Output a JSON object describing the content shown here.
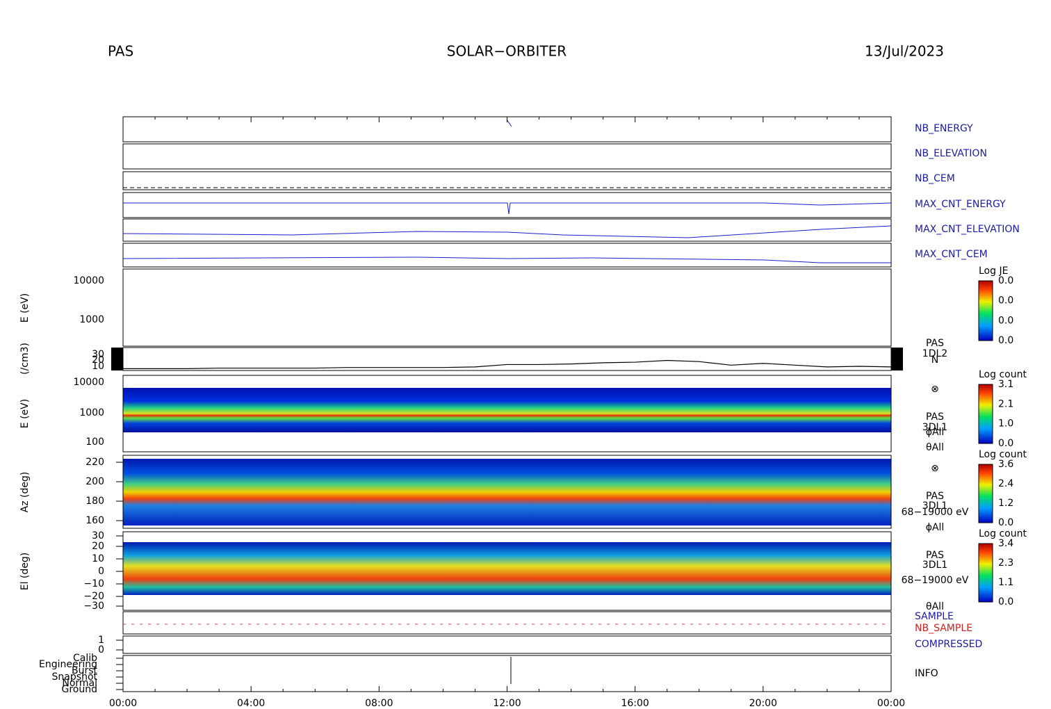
{
  "header": {
    "left": "PAS",
    "center": "SOLAR−ORBITER",
    "right": "13/Jul/2023"
  },
  "x_axis": {
    "ticks": [
      "00:00",
      "04:00",
      "08:00",
      "12:00",
      "16:00",
      "20:00",
      "00:00"
    ]
  },
  "panels": {
    "nb_energy": "NB_ENERGY",
    "nb_elevation": "NB_ELEVATION",
    "nb_cem": "NB_CEM",
    "max_cnt_energy": "MAX_CNT_ENERGY",
    "max_cnt_elevation": "MAX_CNT_ELEVATION",
    "max_cnt_cem": "MAX_CNT_CEM",
    "sample": "SAMPLE",
    "nb_sample": "NB_SAMPLE",
    "compressed": "COMPRESSED",
    "info": "INFO"
  },
  "energy_empty": {
    "ylabel": "E (eV)",
    "yticks": [
      "10000",
      "1000"
    ],
    "cbar_title": "Log JE",
    "cbar_ticks": [
      "0.0",
      "0.0",
      "0.0",
      "0.0"
    ]
  },
  "density": {
    "ylabel": "(/cm3)",
    "yticks": [
      30,
      20,
      10
    ],
    "labels": [
      "PAS",
      "1DL2",
      "N"
    ],
    "hours": [
      0,
      1,
      2,
      3,
      4,
      5,
      6,
      7,
      8,
      9,
      10,
      11,
      12,
      13,
      14,
      15,
      16,
      17,
      18,
      19,
      20,
      21,
      22,
      23,
      24
    ],
    "values": [
      6,
      6,
      6,
      7,
      7,
      7,
      7,
      8,
      8,
      8,
      8,
      9,
      13,
      13,
      14,
      16,
      17,
      20,
      18,
      12,
      15,
      12,
      9,
      10,
      9
    ]
  },
  "energy": {
    "ylabel": "E (eV)",
    "yticks": [
      "10000",
      "1000",
      "100"
    ],
    "labels": [
      "⊗",
      "PAS",
      "3DL1",
      "ϕAll",
      "θAll"
    ],
    "cbar_title": "Log count",
    "cbar_ticks": [
      "3.1",
      "2.1",
      "1.0",
      "0.0"
    ]
  },
  "azimuth": {
    "ylabel": "Az (deg)",
    "yticks": [
      "220",
      "200",
      "180",
      "160"
    ],
    "labels": [
      "⊗",
      "PAS",
      "3DL1",
      "68−19000 eV",
      "ϕAll"
    ],
    "cbar_title": "Log count",
    "cbar_ticks": [
      "3.6",
      "2.4",
      "1.2",
      "0.0"
    ]
  },
  "elevation": {
    "ylabel": "El (deg)",
    "yticks": [
      "30",
      "20",
      "10",
      "0",
      "−10",
      "−20",
      "−30"
    ],
    "labels": [
      "PAS",
      "3DL1",
      "68−19000 eV",
      "θAll"
    ],
    "cbar_title": "Log count",
    "cbar_ticks": [
      "3.4",
      "2.3",
      "1.1",
      "0.0"
    ]
  },
  "compressed_ticks": [
    "1",
    "0"
  ],
  "info_ticks": [
    "Calib",
    "Engineering",
    "Burst",
    "Snapshot",
    "Normal",
    "Ground"
  ]
}
